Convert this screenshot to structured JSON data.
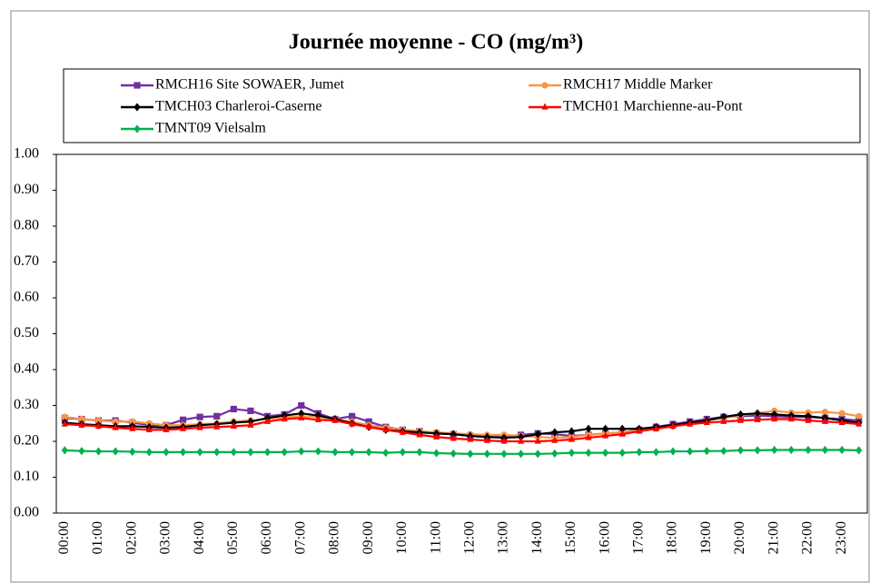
{
  "chart_data": {
    "type": "line",
    "title": "Journée moyenne - CO (mg/m³)",
    "categories": [
      "00:00",
      null,
      "01:00",
      null,
      "02:00",
      null,
      "03:00",
      null,
      "04:00",
      null,
      "05:00",
      null,
      "06:00",
      null,
      "07:00",
      null,
      "08:00",
      null,
      "09:00",
      null,
      "10:00",
      null,
      "11:00",
      null,
      "12:00",
      null,
      "13:00",
      null,
      "14:00",
      null,
      "15:00",
      null,
      "16:00",
      null,
      "17:00",
      null,
      "18:00",
      null,
      "19:00",
      null,
      "20:00",
      null,
      "21:00",
      null,
      "22:00",
      null,
      "23:00",
      null
    ],
    "ylim": [
      0,
      1
    ],
    "yticks": [
      {
        "value": 0,
        "label": "0.00"
      },
      {
        "value": 0.1,
        "label": "0.10"
      },
      {
        "value": 0.2,
        "label": "0.20"
      },
      {
        "value": 0.3,
        "label": "0.30"
      },
      {
        "value": 0.4,
        "label": "0.40"
      },
      {
        "value": 0.5,
        "label": "0.50"
      },
      {
        "value": 0.6,
        "label": "0.60"
      },
      {
        "value": 0.7,
        "label": "0.70"
      },
      {
        "value": 0.8,
        "label": "0.80"
      },
      {
        "value": 0.9,
        "label": "0.90"
      },
      {
        "value": 1,
        "label": "1.00"
      }
    ],
    "grid": false,
    "legend": "top",
    "series": [
      {
        "name": "RMCH16 Site SOWAER, Jumet",
        "color": "#7030a0",
        "marker": "square",
        "values": [
          0.265,
          0.262,
          0.258,
          0.258,
          0.252,
          0.245,
          0.245,
          0.26,
          0.268,
          0.27,
          0.29,
          0.285,
          0.27,
          0.275,
          0.3,
          0.278,
          0.262,
          0.27,
          0.255,
          0.24,
          0.232,
          0.228,
          0.222,
          0.22,
          0.215,
          0.212,
          0.212,
          0.218,
          0.222,
          0.22,
          0.215,
          0.218,
          0.222,
          0.225,
          0.232,
          0.24,
          0.248,
          0.255,
          0.262,
          0.268,
          0.27,
          0.272,
          0.27,
          0.268,
          0.268,
          0.265,
          0.262,
          0.258
        ]
      },
      {
        "name": "RMCH17 Middle Marker",
        "color": "#f79646",
        "marker": "circle",
        "values": [
          0.268,
          0.262,
          0.258,
          0.255,
          0.255,
          0.25,
          0.245,
          0.245,
          0.248,
          0.25,
          0.255,
          0.258,
          0.262,
          0.268,
          0.27,
          0.268,
          0.262,
          0.255,
          0.245,
          0.238,
          0.232,
          0.228,
          0.225,
          0.222,
          0.22,
          0.218,
          0.218,
          0.215,
          0.212,
          0.21,
          0.212,
          0.218,
          0.222,
          0.225,
          0.23,
          0.235,
          0.242,
          0.25,
          0.258,
          0.265,
          0.272,
          0.278,
          0.285,
          0.28,
          0.28,
          0.282,
          0.278,
          0.27
        ]
      },
      {
        "name": "TMCH03 Charleroi-Caserne",
        "color": "#000000",
        "marker": "diamond",
        "values": [
          0.252,
          0.248,
          0.245,
          0.242,
          0.242,
          0.24,
          0.238,
          0.24,
          0.245,
          0.248,
          0.252,
          0.255,
          0.265,
          0.272,
          0.278,
          0.272,
          0.262,
          0.25,
          0.24,
          0.232,
          0.228,
          0.225,
          0.222,
          0.22,
          0.215,
          0.212,
          0.21,
          0.212,
          0.22,
          0.225,
          0.228,
          0.235,
          0.235,
          0.235,
          0.235,
          0.24,
          0.245,
          0.252,
          0.258,
          0.268,
          0.275,
          0.278,
          0.275,
          0.272,
          0.27,
          0.265,
          0.258,
          0.252
        ]
      },
      {
        "name": "TMCH01 Marchienne-au-Pont",
        "color": "#ff0000",
        "marker": "triangle",
        "values": [
          0.248,
          0.245,
          0.242,
          0.238,
          0.235,
          0.232,
          0.232,
          0.235,
          0.238,
          0.24,
          0.242,
          0.245,
          0.255,
          0.262,
          0.265,
          0.26,
          0.258,
          0.248,
          0.24,
          0.232,
          0.225,
          0.218,
          0.212,
          0.208,
          0.205,
          0.202,
          0.2,
          0.2,
          0.2,
          0.202,
          0.205,
          0.21,
          0.215,
          0.22,
          0.228,
          0.235,
          0.242,
          0.248,
          0.252,
          0.255,
          0.258,
          0.26,
          0.262,
          0.262,
          0.258,
          0.255,
          0.252,
          0.248
        ]
      },
      {
        "name": "TMNT09 Vielsalm",
        "color": "#00b050",
        "marker": "diamond",
        "values": [
          0.175,
          0.173,
          0.172,
          0.172,
          0.171,
          0.17,
          0.17,
          0.17,
          0.17,
          0.17,
          0.17,
          0.17,
          0.17,
          0.17,
          0.172,
          0.172,
          0.17,
          0.17,
          0.17,
          0.168,
          0.17,
          0.17,
          0.167,
          0.166,
          0.165,
          0.165,
          0.165,
          0.165,
          0.165,
          0.166,
          0.168,
          0.168,
          0.168,
          0.168,
          0.17,
          0.17,
          0.172,
          0.172,
          0.173,
          0.173,
          0.175,
          0.175,
          0.176,
          0.176,
          0.176,
          0.176,
          0.176,
          0.175
        ]
      }
    ]
  }
}
